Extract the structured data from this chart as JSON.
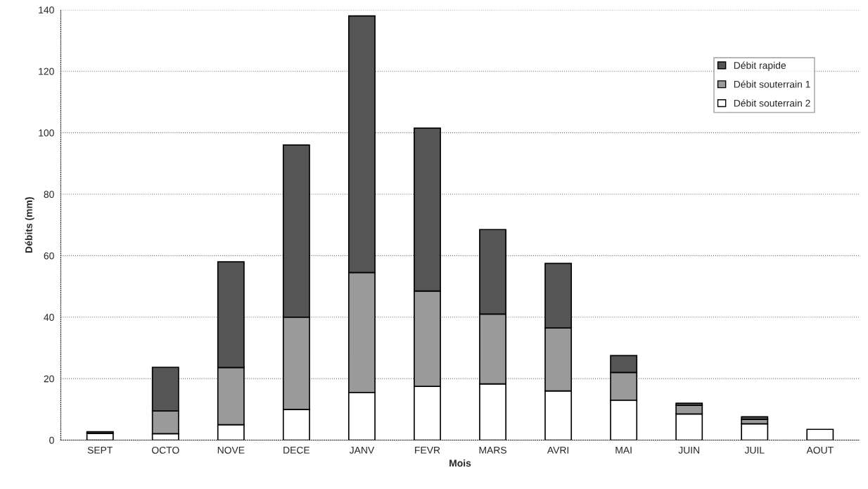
{
  "chart_data": {
    "type": "bar",
    "stacked": true,
    "xlabel": "Mois",
    "ylabel": "Débits (mm)",
    "categories": [
      "SEPT",
      "OCTO",
      "NOVE",
      "DECE",
      "JANV",
      "FEVR",
      "MARS",
      "AVRI",
      "MAI",
      "JUIN",
      "JUIL",
      "AOUT"
    ],
    "series": [
      {
        "name": "Débit souterrain 2",
        "color": "#ffffff",
        "values": [
          2.2,
          2.1,
          5,
          10,
          15.5,
          17.5,
          18.3,
          16,
          13,
          8.5,
          5.3,
          3.5
        ]
      },
      {
        "name": "Débit souterrain 1",
        "color": "#9a9a9a",
        "values": [
          null,
          7.4,
          18.6,
          30,
          39,
          31,
          22.7,
          20.5,
          9,
          2.8,
          1.5,
          null
        ]
      },
      {
        "name": "Débit rapide",
        "color": "#555555",
        "values": [
          0.5,
          14.2,
          34.4,
          56,
          83.5,
          53,
          27.5,
          21,
          5.5,
          0.7,
          0.8,
          null
        ]
      }
    ],
    "ylim": [
      0,
      140
    ],
    "yticks": [
      0,
      20,
      40,
      60,
      80,
      100,
      120,
      140
    ],
    "grid": "y",
    "legend": "top right"
  }
}
